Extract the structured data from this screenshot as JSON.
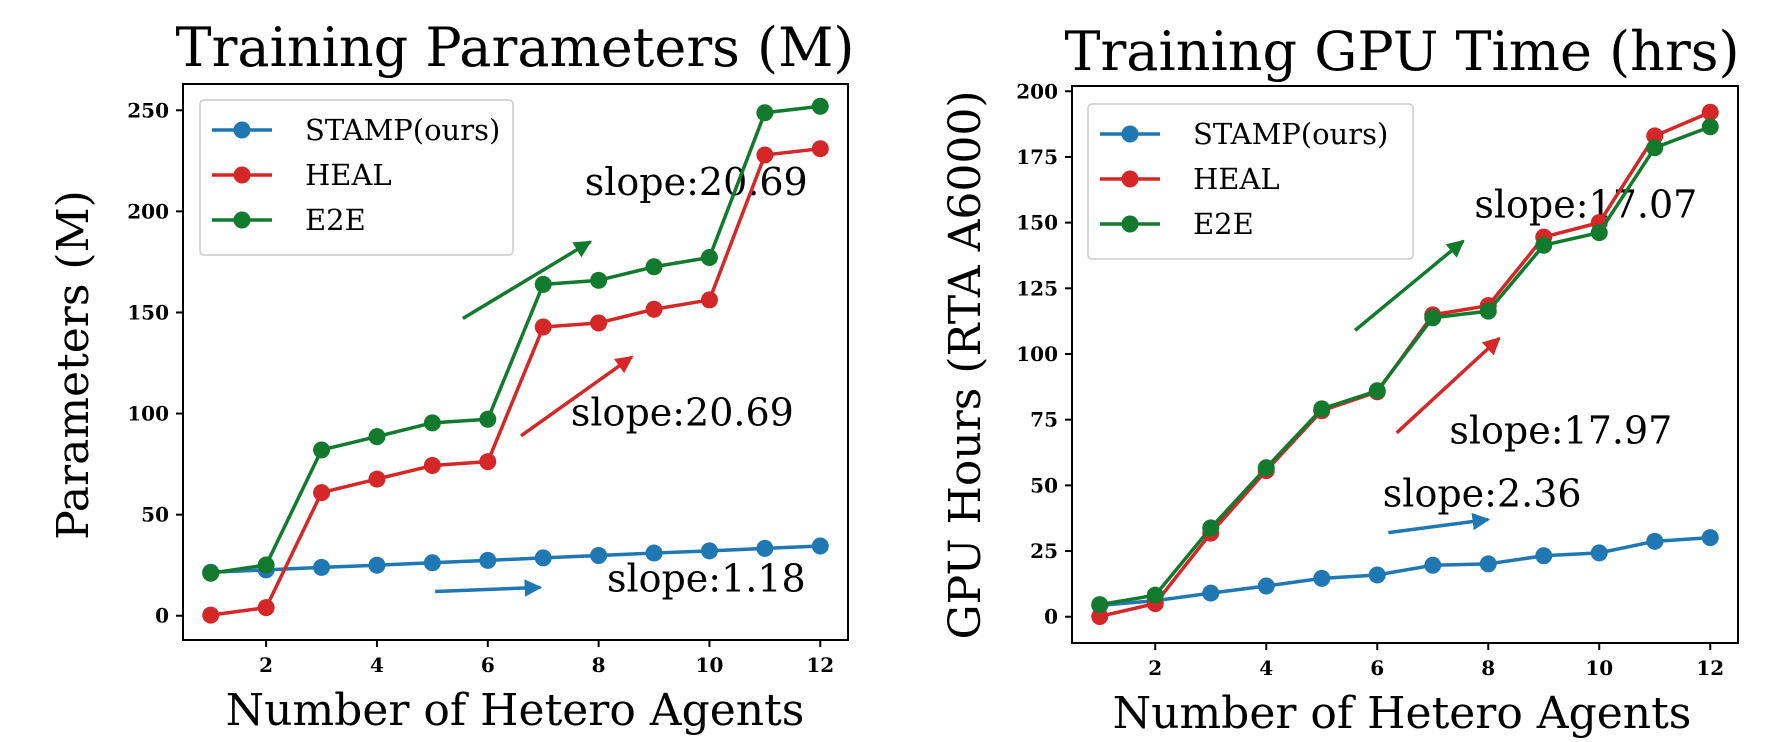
{
  "chart_data": [
    {
      "type": "line",
      "title": "Training Parameters (M)",
      "xlabel": "Number of Hetero Agents",
      "ylabel": "Parameters (M)",
      "xlim": [
        0.5,
        12.5
      ],
      "ylim": [
        -12,
        263
      ],
      "xticks": [
        2,
        4,
        6,
        8,
        10,
        12
      ],
      "yticks": [
        0,
        50,
        100,
        150,
        200,
        250
      ],
      "legend_position": "top-left",
      "x": [
        1,
        2,
        3,
        4,
        5,
        6,
        7,
        8,
        9,
        10,
        11,
        12
      ],
      "series": [
        {
          "name": "STAMP(ours)",
          "color": "#1f77b4",
          "values": [
            21.5,
            22.7,
            23.9,
            25.0,
            26.2,
            27.4,
            28.6,
            29.8,
            31.0,
            32.1,
            33.3,
            34.5
          ]
        },
        {
          "name": "HEAL",
          "color": "#d62728",
          "values": [
            0.3,
            4.0,
            60.9,
            67.6,
            74.3,
            76.2,
            142.8,
            144.8,
            151.6,
            156.2,
            227.9,
            231.0
          ]
        },
        {
          "name": "E2E",
          "color": "#117a2c",
          "values": [
            21.0,
            25.1,
            82.0,
            88.6,
            95.4,
            97.2,
            163.9,
            165.9,
            172.6,
            177.2,
            248.8,
            252.0
          ]
        }
      ],
      "annotations": [
        {
          "text": "slope:20.69",
          "series": "E2E",
          "anchor": [
            7.75,
            208
          ],
          "arrow_from": [
            5.55,
            147
          ],
          "arrow_to": [
            7.85,
            185
          ]
        },
        {
          "text": "slope:20.69",
          "series": "HEAL",
          "anchor": [
            7.5,
            94
          ],
          "arrow_from": [
            6.6,
            89
          ],
          "arrow_to": [
            8.6,
            128
          ]
        },
        {
          "text": "slope:1.18",
          "series": "STAMP(ours)",
          "anchor": [
            8.15,
            12
          ],
          "arrow_from": [
            5.05,
            12
          ],
          "arrow_to": [
            6.95,
            14
          ]
        }
      ]
    },
    {
      "type": "line",
      "title": "Training GPU Time (hrs)",
      "xlabel": "Number of Hetero Agents",
      "ylabel": "GPU Hours (RTA A6000)",
      "xlim": [
        0.5,
        12.5
      ],
      "ylim": [
        -10,
        202
      ],
      "xticks": [
        2,
        4,
        6,
        8,
        10,
        12
      ],
      "yticks": [
        0,
        25,
        50,
        75,
        100,
        125,
        150,
        175,
        200
      ],
      "legend_position": "top-left",
      "x": [
        1,
        2,
        3,
        4,
        5,
        6,
        7,
        8,
        9,
        10,
        11,
        12
      ],
      "series": [
        {
          "name": "STAMP(ours)",
          "color": "#1f77b4",
          "values": [
            4.3,
            6.1,
            9.0,
            11.7,
            14.6,
            15.9,
            19.6,
            20.1,
            23.2,
            24.3,
            28.7,
            30.1
          ]
        },
        {
          "name": "HEAL",
          "color": "#d62728",
          "values": [
            0.1,
            5.0,
            31.8,
            55.6,
            78.4,
            85.6,
            114.9,
            118.4,
            144.5,
            150.0,
            183.0,
            192.0
          ]
        },
        {
          "name": "E2E",
          "color": "#117a2c",
          "values": [
            4.6,
            8.2,
            33.8,
            56.7,
            79.1,
            86.0,
            113.8,
            116.3,
            141.4,
            146.2,
            178.5,
            186.5
          ]
        }
      ],
      "annotations": [
        {
          "text": "slope:17.07",
          "series": "E2E",
          "anchor": [
            7.75,
            152
          ],
          "arrow_from": [
            5.6,
            109
          ],
          "arrow_to": [
            7.55,
            143
          ]
        },
        {
          "text": "slope:17.97",
          "series": "HEAL",
          "anchor": [
            7.3,
            66
          ],
          "arrow_from": [
            6.35,
            70
          ],
          "arrow_to": [
            8.2,
            106
          ]
        },
        {
          "text": "slope:2.36",
          "series": "STAMP(ours)",
          "anchor": [
            6.1,
            42
          ],
          "arrow_from": [
            6.2,
            32
          ],
          "arrow_to": [
            8.0,
            37
          ]
        }
      ]
    }
  ]
}
